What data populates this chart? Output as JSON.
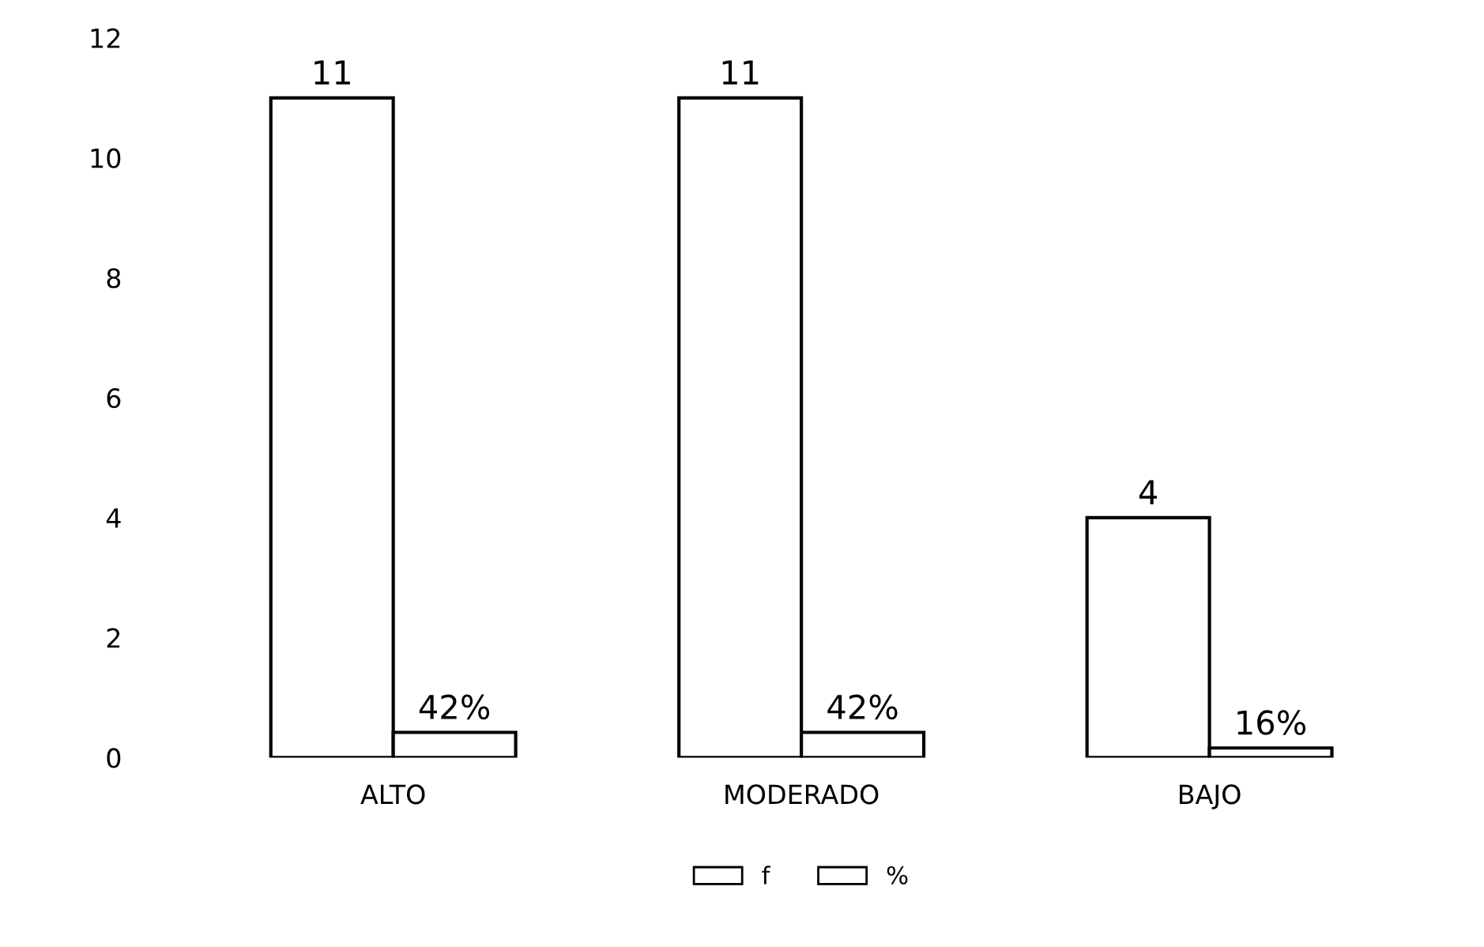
{
  "chart_data": {
    "type": "bar",
    "categories": [
      "ALTO",
      "MODERADO",
      "BAJO"
    ],
    "series": [
      {
        "name": "f",
        "color": "#ffffff",
        "values": [
          11,
          11,
          4
        ],
        "value_labels": [
          "11",
          "11",
          "4"
        ]
      },
      {
        "name": "%",
        "color": "#ffffff",
        "values": [
          0.42,
          0.42,
          0.16
        ],
        "value_labels": [
          "42%",
          "42%",
          "16%"
        ]
      }
    ],
    "ylim": [
      0,
      12
    ],
    "yticks": [
      0,
      2,
      4,
      6,
      8,
      10,
      12
    ],
    "grid": false,
    "legend": "bottom"
  }
}
